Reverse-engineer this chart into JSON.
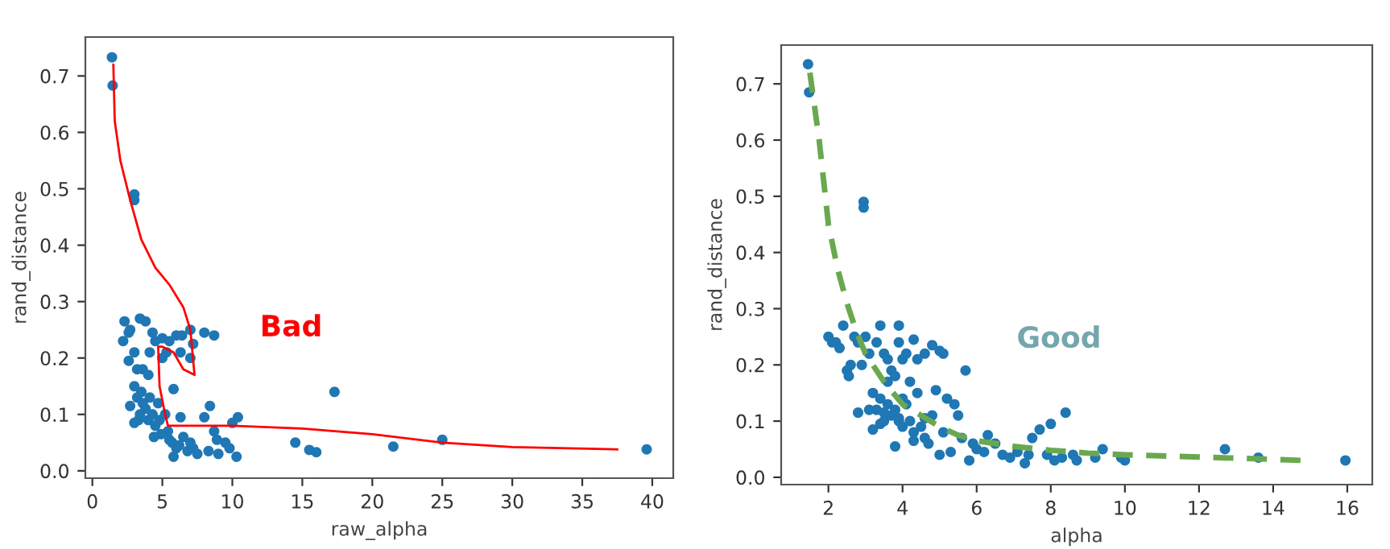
{
  "chart_data": [
    {
      "type": "scatter",
      "xlabel": "raw_alpha",
      "ylabel": "rand_distance",
      "annotations": [
        "Bad"
      ],
      "xlim": [
        -0.5,
        41.5
      ],
      "ylim": [
        -0.013,
        0.769
      ],
      "xticks": [
        0,
        5,
        10,
        15,
        20,
        25,
        30,
        35,
        40
      ],
      "yticks": [
        {
          "value": 0,
          "label": "0.0"
        },
        0.1,
        0.2,
        0.3,
        0.4,
        0.5,
        0.6,
        0.7
      ],
      "grid": false,
      "series": [
        {
          "color": "#1f77b4",
          "marker": "circle",
          "x": [
            1.4,
            1.45,
            3,
            3,
            2.3,
            2.2,
            2.6,
            2.7,
            2.6,
            3.0,
            3.4,
            3.8,
            3.2,
            3.6,
            4.1,
            4.3,
            4.5,
            5.0,
            5.5,
            6.0,
            6.4,
            7.0,
            7.2,
            7.0,
            6.3,
            5.3,
            5.0,
            8.0,
            8.7,
            4.0,
            2.7,
            3.0,
            3.2,
            3.4,
            3.5,
            3.6,
            3.8,
            4.0,
            4.1,
            4.3,
            4.5,
            4.7,
            4.9,
            5.2,
            5.4,
            5.8,
            5.7,
            6.0,
            6.3,
            6.5,
            6.8,
            7.2,
            7.5,
            8.0,
            8.4,
            8.3,
            8.7,
            8.9,
            9.0,
            9.5,
            9.8,
            10.0,
            10.4,
            10.3,
            5.8,
            3.0,
            3.3,
            4.4,
            4.8,
            5.5,
            6.2,
            7.0,
            14.5,
            15.5,
            16.0,
            17.3,
            21.5,
            25.0,
            39.6
          ],
          "values": [
            0.733,
            0.683,
            0.49,
            0.48,
            0.265,
            0.23,
            0.245,
            0.25,
            0.195,
            0.21,
            0.27,
            0.265,
            0.18,
            0.18,
            0.21,
            0.245,
            0.23,
            0.235,
            0.23,
            0.24,
            0.24,
            0.25,
            0.225,
            0.2,
            0.21,
            0.21,
            0.2,
            0.245,
            0.24,
            0.17,
            0.115,
            0.15,
            0.13,
            0.1,
            0.14,
            0.12,
            0.11,
            0.09,
            0.13,
            0.1,
            0.08,
            0.12,
            0.065,
            0.1,
            0.07,
            0.145,
            0.05,
            0.04,
            0.095,
            0.06,
            0.035,
            0.04,
            0.03,
            0.095,
            0.115,
            0.035,
            0.07,
            0.055,
            0.03,
            0.05,
            0.04,
            0.085,
            0.095,
            0.025,
            0.025,
            0.085,
            0.09,
            0.06,
            0.09,
            0.055,
            0.045,
            0.05,
            0.05,
            0.037,
            0.033,
            0.14,
            0.043,
            0.055,
            0.038
          ]
        },
        {
          "type": "line",
          "color": "#ff0000",
          "marker": "none",
          "line_style": "solid",
          "x": [
            1.5,
            1.6,
            2.0,
            2.7,
            3.5,
            4.5,
            5.5,
            6.5,
            7.0,
            7.3,
            6.5,
            5.8,
            5.0,
            4.7,
            4.8,
            5.2,
            5.4,
            10,
            15,
            20,
            25,
            30,
            37.5
          ],
          "values": [
            0.72,
            0.62,
            0.55,
            0.48,
            0.41,
            0.36,
            0.33,
            0.29,
            0.25,
            0.17,
            0.18,
            0.21,
            0.22,
            0.22,
            0.15,
            0.1,
            0.08,
            0.08,
            0.075,
            0.065,
            0.05,
            0.042,
            0.038
          ]
        }
      ]
    },
    {
      "type": "scatter",
      "xlabel": "alpha",
      "ylabel": "rand_distance",
      "annotations": [
        "Good"
      ],
      "xlim": [
        0.725,
        16.675
      ],
      "ylim": [
        -0.013,
        0.769
      ],
      "xticks": [
        2,
        4,
        6,
        8,
        10,
        12,
        14,
        16
      ],
      "yticks": [
        {
          "value": 0,
          "label": "0.0"
        },
        0.1,
        0.2,
        0.3,
        0.4,
        0.5,
        0.6,
        0.7
      ],
      "grid": false,
      "series": [
        {
          "color": "#1f77b4",
          "marker": "circle",
          "x": [
            1.45,
            1.48,
            2.95,
            2.95,
            2,
            2.1,
            2.2,
            2.3,
            2.4,
            2.5,
            2.6,
            2.7,
            2.8,
            2.9,
            3.0,
            3.1,
            3.3,
            3.4,
            3.5,
            3.6,
            3.7,
            3.9,
            3.9,
            4.0,
            4.1,
            4.3,
            4.4,
            4.6,
            4.8,
            5.0,
            5.1,
            5.7,
            3.8,
            4.2,
            3.6,
            2.55,
            2.8,
            3.2,
            3.3,
            3.4,
            3.5,
            3.6,
            3.7,
            3.8,
            3.9,
            4.0,
            4.1,
            4.2,
            4.3,
            4.4,
            4.5,
            4.6,
            4.7,
            4.8,
            4.9,
            5.0,
            5.1,
            5.2,
            5.4,
            5.5,
            5.6,
            5.8,
            5.9,
            6.0,
            6.2,
            6.3,
            6.5,
            6.7,
            6.9,
            7.1,
            7.3,
            7.4,
            7.5,
            7.7,
            7.9,
            8.0,
            8.1,
            8.3,
            8.4,
            8.6,
            8.7,
            9.2,
            9.4,
            9.9,
            10.0,
            12.7,
            13.6,
            15.95,
            3.8,
            3.2,
            3.4,
            4.3,
            5.3,
            3.1,
            3.5,
            3.9,
            4.0,
            4.6
          ],
          "values": [
            0.735,
            0.685,
            0.49,
            0.48,
            0.25,
            0.24,
            0.24,
            0.23,
            0.27,
            0.19,
            0.2,
            0.25,
            0.24,
            0.2,
            0.25,
            0.22,
            0.24,
            0.27,
            0.22,
            0.21,
            0.19,
            0.27,
            0.24,
            0.21,
            0.22,
            0.245,
            0.21,
            0.22,
            0.235,
            0.225,
            0.22,
            0.19,
            0.18,
            0.17,
            0.17,
            0.18,
            0.115,
            0.15,
            0.12,
            0.14,
            0.1,
            0.13,
            0.11,
            0.12,
            0.1,
            0.09,
            0.13,
            0.1,
            0.08,
            0.15,
            0.09,
            0.07,
            0.06,
            0.11,
            0.155,
            0.04,
            0.08,
            0.14,
            0.13,
            0.11,
            0.07,
            0.03,
            0.06,
            0.05,
            0.045,
            0.075,
            0.06,
            0.04,
            0.035,
            0.045,
            0.025,
            0.04,
            0.07,
            0.085,
            0.04,
            0.095,
            0.03,
            0.035,
            0.115,
            0.04,
            0.03,
            0.035,
            0.05,
            0.035,
            0.03,
            0.05,
            0.035,
            0.03,
            0.055,
            0.085,
            0.095,
            0.065,
            0.045,
            0.12,
            0.115,
            0.105,
            0.14,
            0.105
          ]
        },
        {
          "type": "line",
          "color": "#6aa84f",
          "marker": "none",
          "line_style": "dashed",
          "x": [
            1.5,
            1.75,
            2,
            2.25,
            2.5,
            2.75,
            3,
            3.5,
            4,
            4.5,
            5,
            5.5,
            6,
            7,
            8,
            9,
            10,
            12,
            14,
            14.8
          ],
          "values": [
            0.72,
            0.6,
            0.45,
            0.37,
            0.31,
            0.26,
            0.22,
            0.17,
            0.13,
            0.11,
            0.09,
            0.075,
            0.065,
            0.055,
            0.048,
            0.043,
            0.04,
            0.036,
            0.032,
            0.03
          ]
        }
      ]
    }
  ]
}
